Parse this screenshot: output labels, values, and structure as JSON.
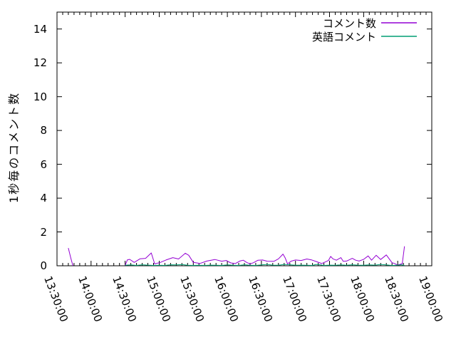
{
  "colors": {
    "background": "#ffffff",
    "axis": "#000000",
    "series_comments": "#9400d3",
    "series_english": "#009e73"
  },
  "chart_data": {
    "type": "line",
    "title": "",
    "xlabel": "",
    "ylabel": "1秒毎のコメント数",
    "grid": false,
    "x_axis": {
      "tick_labels": [
        "13:30:00",
        "14:00:00",
        "14:30:00",
        "15:00:00",
        "15:30:00",
        "16:00:00",
        "16:30:00",
        "17:00:00",
        "17:30:00",
        "18:00:00",
        "18:30:00",
        "19:00:00"
      ],
      "major_interval_minutes": 30,
      "minor_interval_minutes": 5,
      "range_minutes": [
        0,
        330
      ]
    },
    "y_axis": {
      "ticks": [
        0,
        2,
        4,
        6,
        8,
        10,
        12,
        14
      ],
      "range": [
        0,
        15
      ]
    },
    "legend": {
      "position": "top-right-inside",
      "entries": [
        {
          "label": "コメント数",
          "color": "#9400d3"
        },
        {
          "label": "英語コメント",
          "color": "#009e73"
        }
      ]
    },
    "series": [
      {
        "name": "コメント数",
        "color": "#9400d3",
        "t_unit": "minutes after 13:30:00",
        "segments": [
          [
            [
              10,
              1.05
            ],
            [
              12,
              0.5
            ],
            [
              14,
              0
            ]
          ],
          [
            [
              60,
              0.02
            ],
            [
              62,
              0.35
            ],
            [
              64,
              0.38
            ],
            [
              68,
              0.2
            ],
            [
              73,
              0.41
            ],
            [
              78,
              0.44
            ],
            [
              83,
              0.76
            ],
            [
              86,
              0.11
            ],
            [
              91,
              0.2
            ],
            [
              96,
              0.34
            ],
            [
              102,
              0.48
            ],
            [
              107,
              0.4
            ],
            [
              113,
              0.74
            ],
            [
              116,
              0.62
            ],
            [
              120,
              0.2
            ],
            [
              126,
              0.14
            ],
            [
              132,
              0.28
            ],
            [
              139,
              0.37
            ],
            [
              145,
              0.27
            ],
            [
              149,
              0.31
            ],
            [
              153,
              0.17
            ],
            [
              157,
              0.13
            ],
            [
              161,
              0.28
            ],
            [
              164,
              0.33
            ],
            [
              167,
              0.2
            ],
            [
              170,
              0.11
            ],
            [
              173,
              0.18
            ],
            [
              177,
              0.33
            ],
            [
              181,
              0.34
            ],
            [
              185,
              0.27
            ],
            [
              191,
              0.26
            ],
            [
              195,
              0.41
            ],
            [
              199,
              0.69
            ],
            [
              201,
              0.45
            ],
            [
              203,
              0.11
            ],
            [
              206,
              0.27
            ],
            [
              210,
              0.34
            ],
            [
              215,
              0.31
            ],
            [
              220,
              0.4
            ],
            [
              224,
              0.35
            ],
            [
              229,
              0.23
            ],
            [
              233,
              0.13
            ],
            [
              236,
              0.22
            ],
            [
              239,
              0.31
            ],
            [
              241,
              0.55
            ],
            [
              243,
              0.41
            ],
            [
              246,
              0.33
            ],
            [
              250,
              0.48
            ],
            [
              252,
              0.26
            ],
            [
              255,
              0.28
            ],
            [
              260,
              0.44
            ],
            [
              263,
              0.33
            ],
            [
              266,
              0.28
            ],
            [
              270,
              0.38
            ],
            [
              274,
              0.58
            ],
            [
              277,
              0.33
            ],
            [
              281,
              0.62
            ],
            [
              285,
              0.37
            ],
            [
              290,
              0.64
            ],
            [
              295,
              0.18
            ],
            [
              297,
              0.14
            ],
            [
              300,
              0.04
            ],
            [
              304,
              0.13
            ],
            [
              306,
              1.15
            ]
          ]
        ]
      },
      {
        "name": "英語コメント",
        "color": "#009e73",
        "t_unit": "minutes after 13:30:00",
        "segments": [
          [
            [
              60,
              0.03
            ],
            [
              65,
              0.05
            ],
            [
              70,
              0.02
            ],
            [
              75,
              0.06
            ],
            [
              80,
              0.04
            ],
            [
              85,
              0.02
            ],
            [
              90,
              0.03
            ],
            [
              95,
              0.02
            ],
            [
              100,
              0.06
            ],
            [
              105,
              0.05
            ],
            [
              110,
              0.07
            ],
            [
              115,
              0.03
            ],
            [
              120,
              0.02
            ],
            [
              125,
              0.03
            ],
            [
              130,
              0.02
            ],
            [
              135,
              0.04
            ],
            [
              140,
              0.03
            ],
            [
              145,
              0.02
            ],
            [
              150,
              0.05
            ],
            [
              155,
              0.03
            ],
            [
              160,
              0.02
            ],
            [
              165,
              0.06
            ],
            [
              170,
              0.03
            ],
            [
              175,
              0.02
            ],
            [
              180,
              0.05
            ],
            [
              185,
              0.08
            ],
            [
              190,
              0.04
            ],
            [
              195,
              0.03
            ],
            [
              200,
              0.08
            ],
            [
              205,
              0.06
            ],
            [
              210,
              0.03
            ],
            [
              215,
              0.04
            ],
            [
              220,
              0.03
            ],
            [
              225,
              0.02
            ],
            [
              228,
              0.08
            ],
            [
              232,
              0.05
            ],
            [
              235,
              0.02
            ],
            [
              240,
              0.04
            ],
            [
              245,
              0.03
            ],
            [
              250,
              0.05
            ],
            [
              255,
              0.03
            ],
            [
              260,
              0.06
            ],
            [
              265,
              0.04
            ],
            [
              270,
              0.03
            ],
            [
              275,
              0.05
            ],
            [
              280,
              0.04
            ],
            [
              285,
              0.08
            ],
            [
              290,
              0.05
            ],
            [
              293,
              0.03
            ],
            [
              296,
              0.02
            ],
            [
              300,
              0.04
            ],
            [
              303,
              0.06
            ],
            [
              306,
              0.02
            ]
          ]
        ]
      }
    ]
  }
}
